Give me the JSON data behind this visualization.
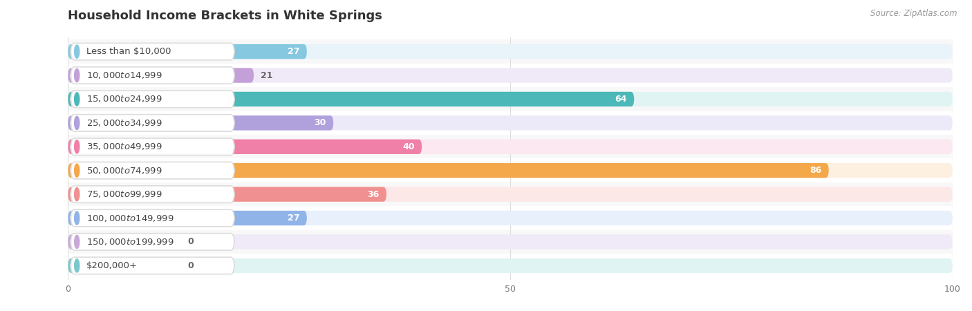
{
  "title": "Household Income Brackets in White Springs",
  "source": "Source: ZipAtlas.com",
  "categories": [
    "Less than $10,000",
    "$10,000 to $14,999",
    "$15,000 to $24,999",
    "$25,000 to $34,999",
    "$35,000 to $49,999",
    "$50,000 to $74,999",
    "$75,000 to $99,999",
    "$100,000 to $149,999",
    "$150,000 to $199,999",
    "$200,000+"
  ],
  "values": [
    27,
    21,
    64,
    30,
    40,
    86,
    36,
    27,
    0,
    0
  ],
  "bar_colors": [
    "#85c8e0",
    "#c4a0d8",
    "#4db8b8",
    "#b0a0dc",
    "#f080a8",
    "#f4a84a",
    "#f09090",
    "#90b4e8",
    "#c8a8d8",
    "#7ac8cc"
  ],
  "bg_colors": [
    "#e8f4fa",
    "#f0eaf8",
    "#e0f4f4",
    "#eceaf8",
    "#fce8f0",
    "#fdf0e0",
    "#fde8e8",
    "#e8f0fc",
    "#f0eaf8",
    "#e0f4f4"
  ],
  "row_bg_colors": [
    "#f8f8f8",
    "#ffffff",
    "#f8f8f8",
    "#ffffff",
    "#f8f8f8",
    "#ffffff",
    "#f8f8f8",
    "#ffffff",
    "#f8f8f8",
    "#ffffff"
  ],
  "xlim": [
    0,
    100
  ],
  "xticks": [
    0,
    50,
    100
  ],
  "title_fontsize": 13,
  "label_fontsize": 9.5,
  "value_fontsize": 9,
  "background_color": "#ffffff",
  "bar_height": 0.62,
  "label_color_inside": "#ffffff",
  "label_color_outside": "#666666",
  "title_color": "#333333",
  "source_color": "#999999"
}
